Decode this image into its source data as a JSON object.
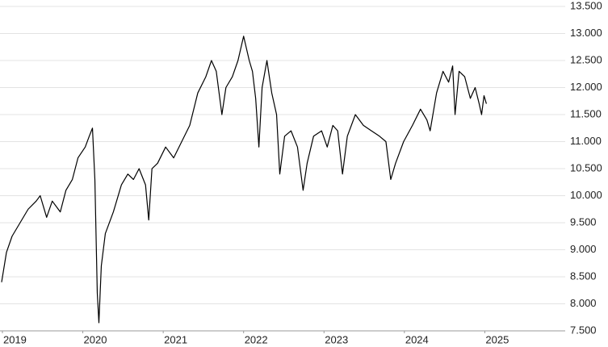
{
  "chart_data": {
    "type": "line",
    "x": [
      2018.99,
      2019.05,
      2019.12,
      2019.22,
      2019.32,
      2019.42,
      2019.47,
      2019.55,
      2019.62,
      2019.72,
      2019.79,
      2019.87,
      2019.94,
      2020.03,
      2020.08,
      2020.12,
      2020.15,
      2020.18,
      2020.2,
      2020.23,
      2020.28,
      2020.38,
      2020.48,
      2020.56,
      2020.63,
      2020.7,
      2020.78,
      2020.82,
      2020.86,
      2020.93,
      2021.03,
      2021.13,
      2021.23,
      2021.33,
      2021.43,
      2021.53,
      2021.6,
      2021.66,
      2021.73,
      2021.78,
      2021.86,
      2021.93,
      2022.0,
      2022.07,
      2022.11,
      2022.15,
      2022.19,
      2022.23,
      2022.29,
      2022.35,
      2022.41,
      2022.45,
      2022.51,
      2022.59,
      2022.67,
      2022.74,
      2022.79,
      2022.87,
      2022.97,
      2023.04,
      2023.11,
      2023.17,
      2023.23,
      2023.29,
      2023.39,
      2023.49,
      2023.59,
      2023.69,
      2023.77,
      2023.83,
      2023.89,
      2023.99,
      2024.1,
      2024.2,
      2024.28,
      2024.32,
      2024.4,
      2024.48,
      2024.55,
      2024.6,
      2024.63,
      2024.68,
      2024.75,
      2024.82,
      2024.88,
      2024.93,
      2024.96,
      2024.99,
      2025.02
    ],
    "values": [
      8400,
      8950,
      9250,
      9500,
      9750,
      9900,
      10000,
      9600,
      9900,
      9700,
      10100,
      10300,
      10700,
      10900,
      11100,
      11250,
      10300,
      8200,
      7650,
      8700,
      9300,
      9700,
      10200,
      10400,
      10300,
      10500,
      10200,
      9550,
      10500,
      10600,
      10900,
      10700,
      11000,
      11300,
      11900,
      12200,
      12500,
      12300,
      11500,
      12000,
      12200,
      12500,
      12950,
      12500,
      12300,
      11800,
      10900,
      12000,
      12500,
      11900,
      11500,
      10400,
      11100,
      11200,
      10900,
      10100,
      10600,
      11100,
      11200,
      10900,
      11300,
      11200,
      10400,
      11100,
      11500,
      11300,
      11200,
      11100,
      11000,
      10300,
      10600,
      11000,
      11300,
      11600,
      11400,
      11200,
      11900,
      12300,
      12100,
      12400,
      11500,
      12300,
      12200,
      11800,
      12000,
      11700,
      11500,
      11850,
      11700
    ],
    "color": "#000000",
    "xlim": [
      2018.97,
      2026.0
    ],
    "ylim": [
      7500,
      13500
    ],
    "xticks": [
      2019,
      2020,
      2021,
      2022,
      2023,
      2024,
      2025
    ],
    "yticks": [
      {
        "value": 7500,
        "label": "7.500"
      },
      {
        "value": 8000,
        "label": "8.000"
      },
      {
        "value": 8500,
        "label": "8.500"
      },
      {
        "value": 9000,
        "label": "9.000"
      },
      {
        "value": 9500,
        "label": "9.500"
      },
      {
        "value": 10000,
        "label": "10.000"
      },
      {
        "value": 10500,
        "label": "10.500"
      },
      {
        "value": 11000,
        "label": "11.000"
      },
      {
        "value": 11500,
        "label": "11.500"
      },
      {
        "value": 12000,
        "label": "12.000"
      },
      {
        "value": 12500,
        "label": "12.500"
      },
      {
        "value": 13000,
        "label": "13.000"
      },
      {
        "value": 13500,
        "label": "13.500"
      }
    ],
    "grid": true
  }
}
